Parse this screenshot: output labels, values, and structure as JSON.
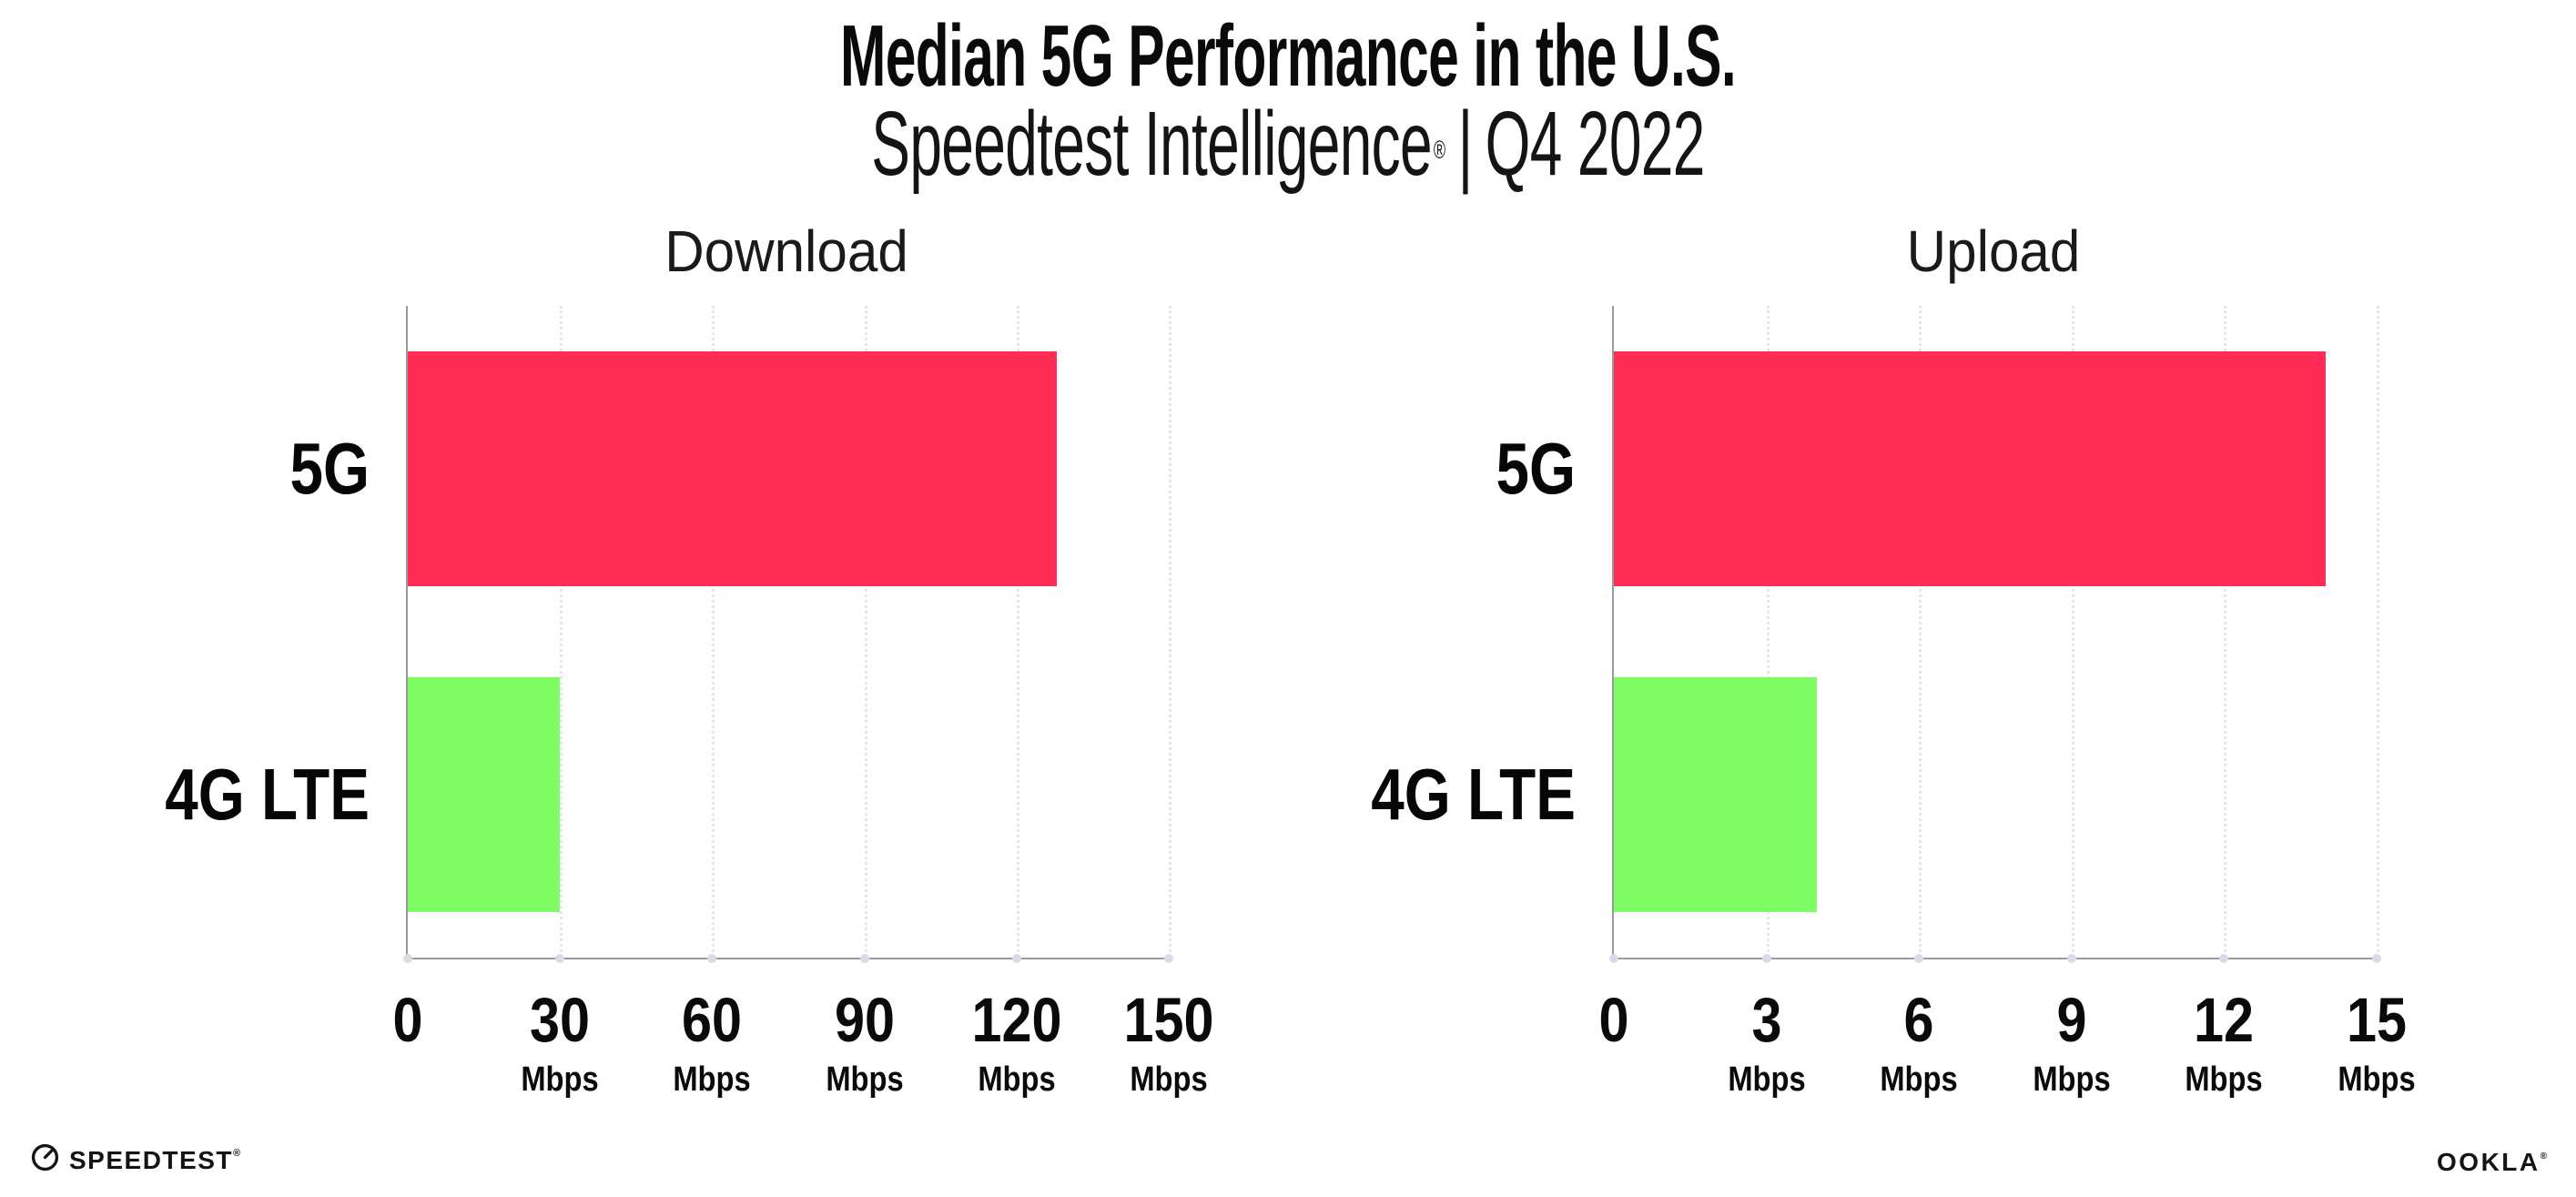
{
  "header": {
    "title": "Median 5G Performance in the U.S.",
    "subtitle": {
      "brand": "Speedtest Intelligence",
      "reg_mark": "®",
      "separator": "|",
      "period": "Q4 2022"
    }
  },
  "chart_data": [
    {
      "type": "bar",
      "orientation": "horizontal",
      "title": "Download",
      "categories": [
        "5G",
        "4G LTE"
      ],
      "values": [
        128,
        30
      ],
      "unit": "Mbps",
      "xlim": [
        0,
        150
      ],
      "xticks": [
        0,
        30,
        60,
        90,
        120,
        150
      ],
      "bar_colors": [
        "#FF2D55",
        "#80FC64"
      ],
      "grid": "vertical-dotted",
      "legend": "none"
    },
    {
      "type": "bar",
      "orientation": "horizontal",
      "title": "Upload",
      "categories": [
        "5G",
        "4G LTE"
      ],
      "values": [
        14,
        4
      ],
      "unit": "Mbps",
      "xlim": [
        0,
        15
      ],
      "xticks": [
        0,
        3,
        6,
        9,
        12,
        15
      ],
      "bar_colors": [
        "#FF2D55",
        "#80FC64"
      ],
      "grid": "vertical-dotted",
      "legend": "none"
    }
  ],
  "footer": {
    "speedtest_wordmark": "SPEEDTEST",
    "speedtest_reg": "®",
    "gauge_icon": "speedtest-gauge-icon",
    "ookla_wordmark": "OOKLA",
    "ookla_reg": "®"
  },
  "colors": {
    "bar_5g": "#FF2D55",
    "bar_4g_lte": "#80FC64",
    "gridline": "#E5E5ED",
    "axis": "#9A9A9A",
    "axis_dot": "#D9DCE6",
    "text": "#0A0A0A",
    "background": "#FFFFFF"
  }
}
